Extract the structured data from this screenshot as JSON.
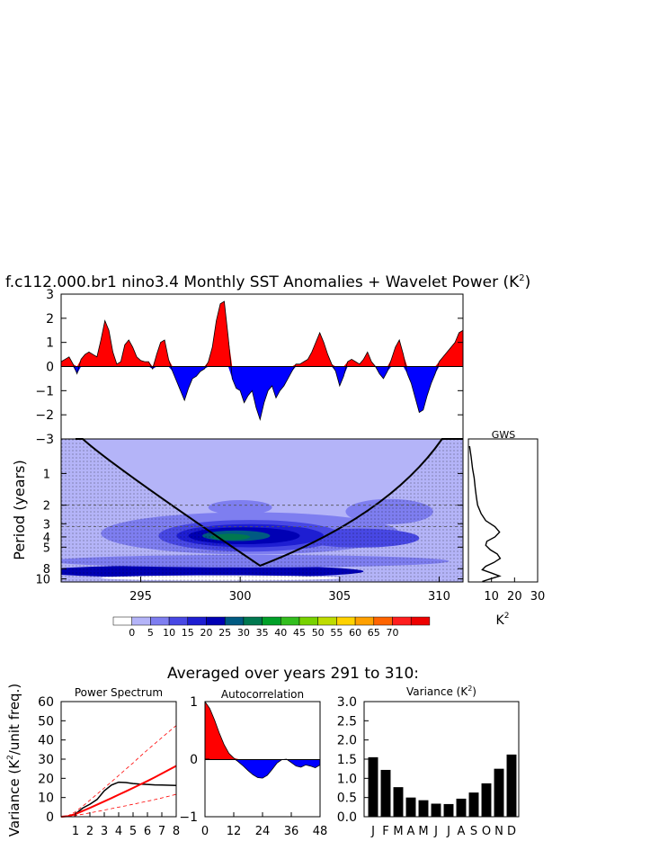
{
  "colors": {
    "positive": "#ff0000",
    "negative": "#0000ff",
    "ci_line": "#ff0000",
    "spectrum_line": "#000000",
    "bars": "#000000",
    "dashed_line": "#555555"
  },
  "chart_data": [
    {
      "id": "timeseries",
      "type": "area",
      "title": "f.c112.000.br1 nino3.4 Monthly SST Anomalies + Wavelet Power (K",
      "title_sup": "2",
      "title_end": ")",
      "xlim": [
        291,
        311.2
      ],
      "ylim": [
        -3,
        3
      ],
      "yticks": [
        3,
        2,
        1,
        0,
        -1,
        -2,
        -3
      ],
      "ytick_labels": [
        "3",
        "2",
        "1",
        "0",
        "−1",
        "−2",
        "−3"
      ],
      "x": [
        291.0,
        291.2,
        291.4,
        291.6,
        291.8,
        292.0,
        292.2,
        292.4,
        292.6,
        292.8,
        293.0,
        293.2,
        293.4,
        293.6,
        293.8,
        294.0,
        294.2,
        294.4,
        294.6,
        294.8,
        295.0,
        295.2,
        295.4,
        295.6,
        295.8,
        296.0,
        296.2,
        296.4,
        296.6,
        296.8,
        297.0,
        297.2,
        297.4,
        297.6,
        297.8,
        298.0,
        298.2,
        298.4,
        298.6,
        298.8,
        299.0,
        299.2,
        299.4,
        299.6,
        299.8,
        300.0,
        300.2,
        300.4,
        300.6,
        300.8,
        301.0,
        301.2,
        301.4,
        301.6,
        301.8,
        302.0,
        302.2,
        302.4,
        302.6,
        302.8,
        303.0,
        303.2,
        303.4,
        303.6,
        303.8,
        304.0,
        304.2,
        304.4,
        304.6,
        304.8,
        305.0,
        305.2,
        305.4,
        305.6,
        305.8,
        306.0,
        306.2,
        306.4,
        306.6,
        306.8,
        307.0,
        307.2,
        307.4,
        307.6,
        307.8,
        308.0,
        308.2,
        308.4,
        308.6,
        308.8,
        309.0,
        309.2,
        309.4,
        309.6,
        309.8,
        310.0,
        310.2,
        310.4,
        310.6,
        310.8,
        311.0,
        311.2
      ],
      "y": [
        0.2,
        0.3,
        0.4,
        0.1,
        -0.3,
        0.3,
        0.5,
        0.6,
        0.5,
        0.4,
        1.1,
        1.9,
        1.5,
        0.6,
        0.1,
        0.2,
        0.9,
        1.1,
        0.8,
        0.4,
        0.25,
        0.2,
        0.2,
        -0.1,
        0.5,
        1.0,
        1.1,
        0.3,
        -0.2,
        -0.6,
        -1.0,
        -1.4,
        -0.9,
        -0.5,
        -0.4,
        -0.2,
        -0.1,
        0.2,
        0.8,
        1.9,
        2.6,
        2.7,
        1.2,
        -0.5,
        -0.9,
        -1.0,
        -1.5,
        -1.2,
        -1.0,
        -1.7,
        -2.2,
        -1.5,
        -1.0,
        -0.8,
        -1.3,
        -1.0,
        -0.8,
        -0.5,
        -0.2,
        0.1,
        0.1,
        0.2,
        0.3,
        0.6,
        1.0,
        1.4,
        1.0,
        0.5,
        0.1,
        -0.2,
        -0.8,
        -0.4,
        0.2,
        0.3,
        0.2,
        0.1,
        0.3,
        0.6,
        0.2,
        0.0,
        -0.3,
        -0.5,
        -0.2,
        0.3,
        0.8,
        1.1,
        0.5,
        -0.3,
        -0.7,
        -1.3,
        -1.9,
        -1.8,
        -1.2,
        -0.7,
        -0.3,
        0.2,
        0.4,
        0.6,
        0.8,
        1.0,
        1.4,
        1.5
      ]
    },
    {
      "id": "wavelet",
      "type": "heatmap",
      "ylabel": "Period (years)",
      "xticks": [
        295,
        300,
        305,
        310
      ],
      "yticks": [
        1,
        2,
        3,
        4,
        5,
        8,
        10
      ],
      "ylim_log": [
        0.47,
        10.7
      ],
      "dashed_periods": [
        2,
        3.2
      ],
      "coi_min_period": 7.5,
      "coi_center_year": 301,
      "colorbar_labels": [
        "0",
        "5",
        "10",
        "15",
        "20",
        "25",
        "30",
        "35",
        "40",
        "45",
        "50",
        "55",
        "60",
        "65",
        "70"
      ],
      "colorbar_colors": [
        "#ffffff",
        "#b4b4f8",
        "#7e7ef0",
        "#4848e4",
        "#1e1ed2",
        "#0000b4",
        "#005a82",
        "#007850",
        "#00a028",
        "#32be1e",
        "#78d200",
        "#bedc00",
        "#ffd200",
        "#ffa000",
        "#ff6400",
        "#ff1e1e",
        "#ee0000"
      ],
      "regions": [
        {
          "center_year": 298.0,
          "period": 8.5,
          "half_width_years": 8.2,
          "half_log_span": 0.06,
          "level": 5
        },
        {
          "center_year": 300.5,
          "period": 6.8,
          "half_width_years": 10.0,
          "half_log_span": 0.06,
          "level": 2
        },
        {
          "center_year": 300.5,
          "period": 3.7,
          "half_width_years": 7.5,
          "half_log_span": 0.2,
          "level": 2
        },
        {
          "center_year": 300.0,
          "period": 2.1,
          "half_width_years": 1.6,
          "half_log_span": 0.07,
          "level": 2
        },
        {
          "center_year": 307.5,
          "period": 2.3,
          "half_width_years": 2.2,
          "half_log_span": 0.12,
          "level": 2
        },
        {
          "center_year": 306.0,
          "period": 4.1,
          "half_width_years": 3.0,
          "half_log_span": 0.09,
          "level": 3
        },
        {
          "center_year": 300.5,
          "period": 3.9,
          "half_width_years": 4.6,
          "half_log_span": 0.15,
          "level": 3
        },
        {
          "center_year": 300.5,
          "period": 3.9,
          "half_width_years": 3.7,
          "half_log_span": 0.11,
          "level": 4
        },
        {
          "center_year": 300.2,
          "period": 3.9,
          "half_width_years": 2.8,
          "half_log_span": 0.08,
          "level": 5
        },
        {
          "center_year": 299.8,
          "period": 3.9,
          "half_width_years": 1.7,
          "half_log_span": 0.05,
          "level": 6
        },
        {
          "center_year": 299.5,
          "period": 4.0,
          "half_width_years": 1.0,
          "half_log_span": 0.03,
          "level": 7
        },
        {
          "center_year": 299.0,
          "period": 9.8,
          "half_width_years": 6.0,
          "half_log_span": 0.025,
          "level": 0
        }
      ]
    },
    {
      "id": "gws",
      "type": "line",
      "title": "GWS",
      "xlabel": "K",
      "xlabel_sup": "2",
      "xticks": [
        10,
        20,
        30
      ],
      "xlim": [
        0,
        30
      ],
      "periods": [
        0.55,
        0.7,
        0.9,
        1.1,
        1.4,
        1.7,
        2.0,
        2.4,
        2.8,
        3.2,
        3.6,
        4.0,
        4.4,
        4.8,
        5.3,
        5.8,
        6.4,
        7.0,
        7.6,
        8.2,
        8.8,
        9.4,
        10.0,
        10.6
      ],
      "power": [
        0.5,
        1.2,
        1.8,
        2.5,
        3.0,
        3.5,
        4.0,
        5.5,
        7.5,
        11.5,
        13.5,
        11.5,
        8.0,
        7.5,
        9.5,
        12.5,
        13.8,
        11.0,
        7.5,
        6.0,
        10.0,
        13.5,
        9.5,
        6.0
      ]
    },
    {
      "id": "averaged_header",
      "type": "table",
      "title": "Averaged over years 291 to 310:"
    },
    {
      "id": "power_spectrum",
      "type": "line",
      "title": "Power Spectrum",
      "ylabel_prefix": "Variance (K",
      "ylabel_sup": "2",
      "ylabel_suffix": "/unit freq.)",
      "xlim": [
        0,
        8
      ],
      "ylim": [
        0,
        60
      ],
      "yticks": [
        0,
        10,
        20,
        30,
        40,
        50,
        60
      ],
      "xticks": [
        1,
        2,
        3,
        4,
        5,
        6,
        7,
        8
      ],
      "x": [
        0.5,
        1.0,
        1.5,
        2.0,
        2.5,
        3.0,
        3.5,
        4.0,
        4.5,
        5.0,
        5.5,
        6.0,
        6.5,
        7.0,
        7.5,
        8.0
      ],
      "series": [
        {
          "name": "spectrum",
          "values": [
            0.3,
            1.5,
            4.5,
            6.5,
            9.0,
            13.5,
            16.5,
            18.0,
            17.8,
            17.3,
            17.0,
            16.8,
            16.6,
            16.5,
            16.4,
            16.3
          ]
        },
        {
          "name": "red_noise",
          "values": [
            0.3,
            1.4,
            3.0,
            4.6,
            6.3,
            8.0,
            9.7,
            11.5,
            13.2,
            15.0,
            16.8,
            18.6,
            20.5,
            22.5,
            24.5,
            26.5
          ]
        },
        {
          "name": "red_noise_upper",
          "values": [
            0.6,
            2.6,
            5.5,
            8.6,
            11.8,
            15.0,
            18.2,
            21.5,
            24.8,
            28.0,
            31.5,
            34.8,
            38.0,
            41.2,
            44.4,
            47.5
          ]
        },
        {
          "name": "red_noise_lower",
          "values": [
            0.15,
            0.6,
            1.3,
            2.0,
            2.7,
            3.5,
            4.2,
            5.0,
            5.7,
            6.5,
            7.3,
            8.1,
            8.9,
            9.8,
            10.7,
            11.7
          ]
        }
      ]
    },
    {
      "id": "autocorrelation",
      "type": "area",
      "title": "Autocorrelation",
      "xlim": [
        0,
        48
      ],
      "ylim": [
        -1,
        1
      ],
      "yticks": [
        1,
        0,
        -1
      ],
      "ytick_labels": [
        "1",
        "0",
        "−1"
      ],
      "xticks": [
        0,
        12,
        24,
        36,
        48
      ],
      "x": [
        0,
        2,
        4,
        6,
        8,
        10,
        12,
        14,
        16,
        18,
        20,
        22,
        24,
        26,
        28,
        30,
        32,
        34,
        36,
        38,
        40,
        42,
        44,
        46,
        48
      ],
      "y": [
        1.0,
        0.88,
        0.68,
        0.45,
        0.25,
        0.1,
        0.02,
        -0.05,
        -0.12,
        -0.2,
        -0.27,
        -0.32,
        -0.33,
        -0.28,
        -0.18,
        -0.07,
        -0.01,
        0.0,
        -0.06,
        -0.12,
        -0.14,
        -0.1,
        -0.12,
        -0.15,
        -0.1
      ]
    },
    {
      "id": "variance",
      "type": "bar",
      "title": "Variance (K",
      "title_sup": "2",
      "title_end": ")",
      "ylim": [
        0,
        3
      ],
      "yticks": [
        0.0,
        0.5,
        1.0,
        1.5,
        2.0,
        2.5,
        3.0
      ],
      "ytick_labels": [
        "0.0",
        "0.5",
        "1.0",
        "1.5",
        "2.0",
        "2.5",
        "3.0"
      ],
      "categories": [
        "J",
        "F",
        "M",
        "A",
        "M",
        "J",
        "J",
        "A",
        "S",
        "O",
        "N",
        "D"
      ],
      "values": [
        1.55,
        1.22,
        0.77,
        0.5,
        0.43,
        0.34,
        0.33,
        0.47,
        0.63,
        0.87,
        1.25,
        1.62
      ]
    }
  ]
}
